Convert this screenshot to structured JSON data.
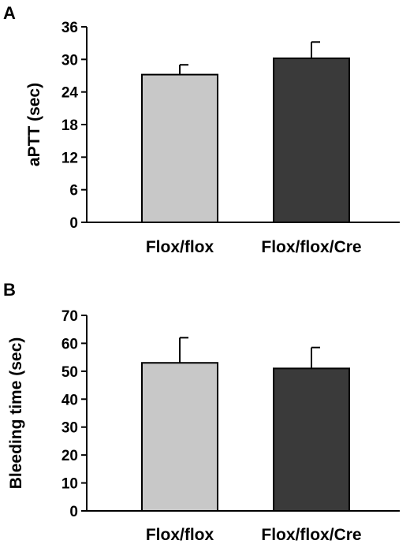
{
  "chart_data": [
    {
      "panel": "A",
      "type": "bar",
      "categories": [
        "Flox/flox",
        "Flox/flox/Cre"
      ],
      "values": [
        27.2,
        30.2
      ],
      "errors": [
        1.8,
        3.0
      ],
      "ylabel": "aPTT (sec)",
      "xlabel": "",
      "ylim": [
        0,
        36
      ],
      "yticks": [
        "0",
        "6",
        "12",
        "18",
        "24",
        "30",
        "36"
      ],
      "colors": [
        "#c8c8c8",
        "#3a3a3a"
      ],
      "grid": false
    },
    {
      "panel": "B",
      "type": "bar",
      "categories": [
        "Flox/flox",
        "Flox/flox/Cre"
      ],
      "values": [
        53,
        51
      ],
      "errors": [
        9,
        7.5
      ],
      "ylabel": "Bleeding time (sec)",
      "xlabel": "",
      "ylim": [
        0,
        70
      ],
      "yticks": [
        "0",
        "10",
        "20",
        "30",
        "40",
        "50",
        "60",
        "70"
      ],
      "colors": [
        "#c8c8c8",
        "#3a3a3a"
      ],
      "grid": false
    }
  ]
}
